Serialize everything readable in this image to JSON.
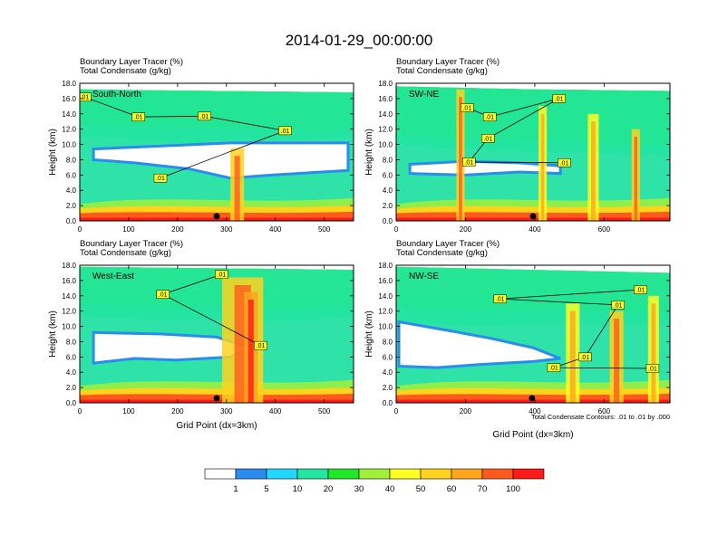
{
  "title": "2014-01-29_00:00:00",
  "colors": {
    "levels": [
      "#ffffff",
      "#2b8cf0",
      "#22d8ff",
      "#22e6a0",
      "#22e62a",
      "#a0f03a",
      "#ffff22",
      "#ffd21e",
      "#ffa51c",
      "#ff5a1e",
      "#ff1a1a"
    ],
    "sky_bg": "#2ee2a8",
    "contour": "#000000"
  },
  "colorbar": {
    "labels": [
      "1",
      "5",
      "10",
      "20",
      "30",
      "40",
      "50",
      "60",
      "70",
      "100"
    ]
  },
  "note": "Total Condensate Contours: .01 to .01 by .000",
  "chart_data": [
    {
      "type": "heatmap",
      "panel_label": "South-North",
      "title_line1": "Boundary Layer Tracer    (%)",
      "title_line2": "Total Condensate    (g/kg)",
      "ylabel": "Height (km)",
      "xlabel": "",
      "xlim": [
        0,
        560
      ],
      "ylim": [
        0,
        18
      ],
      "xticks": [
        0,
        100,
        200,
        300,
        400,
        500
      ],
      "yticks": [
        "0.0",
        "2.0",
        "4.0",
        "6.0",
        "8.0",
        "10.0",
        "12.0",
        "14.0",
        "16.0",
        "18.0"
      ],
      "marker_x": 280,
      "contour_labels": [
        {
          "text": ".01",
          "x": 10,
          "y": 16.2
        },
        {
          "text": ".01",
          "x": 120,
          "y": 13.6
        },
        {
          "text": ".01",
          "x": 255,
          "y": 13.7
        },
        {
          "text": ".01",
          "x": 420,
          "y": 11.8
        },
        {
          "text": ".01",
          "x": 165,
          "y": 5.6
        }
      ]
    },
    {
      "type": "heatmap",
      "panel_label": "SW-NE",
      "title_line1": "Boundary Layer Tracer    (%)",
      "title_line2": "Total Condensate    (g/kg)",
      "ylabel": "Height (km)",
      "xlabel": "",
      "xlim": [
        0,
        790
      ],
      "ylim": [
        0,
        18
      ],
      "xticks": [
        0,
        200,
        400,
        600
      ],
      "yticks": [
        "0.0",
        "2.0",
        "4.0",
        "6.0",
        "8.0",
        "10.0",
        "12.0",
        "14.0",
        "16.0",
        "18.0"
      ],
      "marker_x": 395,
      "contour_labels": [
        {
          "text": ".01",
          "x": 205,
          "y": 14.8
        },
        {
          "text": ".01",
          "x": 270,
          "y": 13.6
        },
        {
          "text": ".01",
          "x": 470,
          "y": 16.0
        },
        {
          "text": ".01",
          "x": 265,
          "y": 10.8
        },
        {
          "text": ".01",
          "x": 210,
          "y": 7.7
        },
        {
          "text": ".01",
          "x": 485,
          "y": 7.6
        }
      ]
    },
    {
      "type": "heatmap",
      "panel_label": "West-East",
      "title_line1": "Boundary Layer Tracer    (%)",
      "title_line2": "Total Condensate    (g/kg)",
      "ylabel": "Height (km)",
      "xlabel": "Grid Point (dx=3km)",
      "xlim": [
        0,
        560
      ],
      "ylim": [
        0,
        18
      ],
      "xticks": [
        0,
        100,
        200,
        300,
        400,
        500
      ],
      "yticks": [
        "0.0",
        "2.0",
        "4.0",
        "6.0",
        "8.0",
        "10.0",
        "12.0",
        "14.0",
        "16.0",
        "18.0"
      ],
      "marker_x": 280,
      "contour_labels": [
        {
          "text": ".01",
          "x": 290,
          "y": 16.8
        },
        {
          "text": ".01",
          "x": 170,
          "y": 14.2
        },
        {
          "text": ".01",
          "x": 370,
          "y": 7.5
        }
      ]
    },
    {
      "type": "heatmap",
      "panel_label": "NW-SE",
      "title_line1": "Boundary Layer Tracer    (%)",
      "title_line2": "Total Condensate    (g/kg)",
      "ylabel": "Height (km)",
      "xlabel": "Grid Point (dx=3km)",
      "xlim": [
        0,
        790
      ],
      "ylim": [
        0,
        18
      ],
      "xticks": [
        0,
        200,
        400,
        600
      ],
      "yticks": [
        "0.0",
        "2.0",
        "4.0",
        "6.0",
        "8.0",
        "10.0",
        "12.0",
        "14.0",
        "16.0",
        "18.0"
      ],
      "marker_x": 392,
      "contour_labels": [
        {
          "text": ".01",
          "x": 705,
          "y": 14.8
        },
        {
          "text": ".01",
          "x": 300,
          "y": 13.6
        },
        {
          "text": ".01",
          "x": 640,
          "y": 12.8
        },
        {
          "text": ".01",
          "x": 545,
          "y": 6.0
        },
        {
          "text": ".01",
          "x": 455,
          "y": 4.6
        },
        {
          "text": ".01",
          "x": 740,
          "y": 4.5
        }
      ]
    }
  ]
}
